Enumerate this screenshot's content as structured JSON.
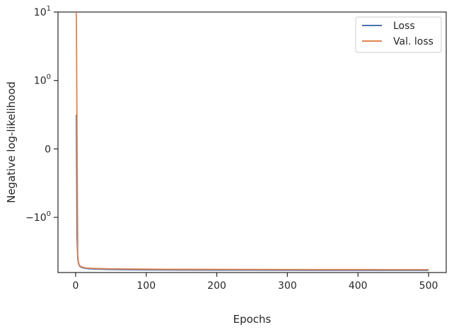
{
  "chart_data": {
    "type": "line",
    "title": "",
    "xlabel": "Epochs",
    "ylabel": "Negative log-likelihood",
    "yscale": "symlog",
    "xlim": [
      -25,
      525
    ],
    "ylim": [
      -6.4,
      10
    ],
    "x_ticks": [
      {
        "value": 0,
        "label": "0"
      },
      {
        "value": 100,
        "label": "100"
      },
      {
        "value": 200,
        "label": "200"
      },
      {
        "value": 300,
        "label": "300"
      },
      {
        "value": 400,
        "label": "400"
      },
      {
        "value": 500,
        "label": "500"
      }
    ],
    "y_ticks": [
      {
        "value": 10,
        "base": "10",
        "exp": "1",
        "label": "10^1"
      },
      {
        "value": 1,
        "base": "10",
        "exp": "0",
        "label": "10^0"
      },
      {
        "value": 0,
        "base": "0",
        "exp": "",
        "label": "0"
      },
      {
        "value": -1,
        "base": "−10",
        "exp": "0",
        "label": "−10^0"
      }
    ],
    "grid": false,
    "legend_position": "top-right",
    "series": [
      {
        "name": "Loss",
        "color": "#4c72b0",
        "x": [
          1,
          2,
          3,
          4,
          5,
          6,
          8,
          10,
          12,
          15,
          20,
          25,
          30,
          40,
          50,
          60,
          80,
          100,
          125,
          150,
          200,
          250,
          300,
          350,
          400,
          450,
          500
        ],
        "y": [
          0.5,
          -2.0,
          -4.0,
          -4.7,
          -5.0,
          -5.2,
          -5.35,
          -5.45,
          -5.52,
          -5.58,
          -5.64,
          -5.68,
          -5.71,
          -5.75,
          -5.78,
          -5.8,
          -5.83,
          -5.85,
          -5.87,
          -5.88,
          -5.9,
          -5.91,
          -5.92,
          -5.93,
          -5.93,
          -5.94,
          -5.94
        ]
      },
      {
        "name": "Val. loss",
        "color": "#dd8452",
        "x": [
          1,
          2,
          3,
          4,
          5,
          6,
          8,
          10,
          12,
          15,
          20,
          25,
          30,
          40,
          50,
          60,
          80,
          100,
          125,
          150,
          200,
          250,
          300,
          350,
          400,
          450,
          500
        ],
        "y": [
          10.0,
          0.2,
          -3.5,
          -4.5,
          -4.9,
          -5.1,
          -5.25,
          -5.35,
          -5.42,
          -5.48,
          -5.53,
          -5.56,
          -5.59,
          -5.62,
          -5.65,
          -5.67,
          -5.69,
          -5.71,
          -5.73,
          -5.74,
          -5.76,
          -5.77,
          -5.78,
          -5.79,
          -5.79,
          -5.8,
          -5.8
        ]
      }
    ]
  }
}
